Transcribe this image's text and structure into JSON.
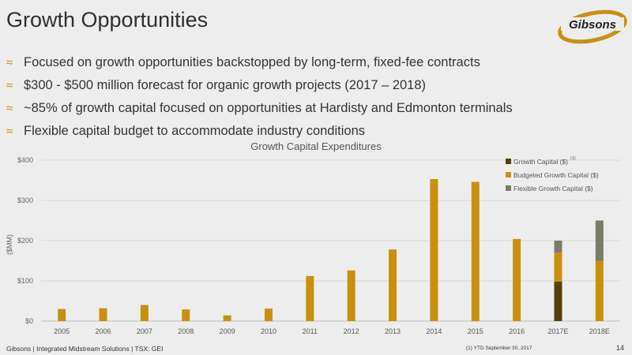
{
  "slide": {
    "title": "Growth Opportunities",
    "bullets": [
      "Focused on growth opportunities backstopped by long-term, fixed-fee contracts",
      "$300 - $500 million forecast for organic growth projects (2017 – 2018)",
      "~85% of growth capital focused on opportunities at Hardisty and Edmonton terminals",
      "Flexible capital budget to accommodate industry conditions"
    ],
    "bullet_icon": "≈",
    "logo_text": "Gibsons",
    "footer_left": "Gibsons  |  Integrated Midstream Solutions  |  TSX: GEI",
    "footer_note": "(1) YTD September 30, 2017",
    "page_number": "14"
  },
  "colors": {
    "growth": "#5a3d0a",
    "budgeted": "#c8900e",
    "flexible": "#7b7b6a",
    "accent": "#c08a1e"
  },
  "chart_data": {
    "type": "bar",
    "stacked": true,
    "title": "Growth Capital Expenditures",
    "xlabel": "",
    "ylabel": "($MM)",
    "ylim": [
      0,
      400
    ],
    "yticks": [
      0,
      100,
      200,
      300,
      400
    ],
    "ytick_labels": [
      "$0",
      "$100",
      "$200",
      "$300",
      "$400"
    ],
    "categories": [
      "2005",
      "2006",
      "2007",
      "2008",
      "2009",
      "2010",
      "2011",
      "2012",
      "2013",
      "2014",
      "2015",
      "2016",
      "2017E",
      "2018E"
    ],
    "series": [
      {
        "name": "Growth Capital ($)",
        "superscript": "(1)",
        "values": [
          0,
          0,
          0,
          0,
          0,
          0,
          0,
          0,
          0,
          0,
          0,
          0,
          98,
          0
        ]
      },
      {
        "name": "Budgeted Growth Capital ($)",
        "values": [
          30,
          32,
          40,
          29,
          14,
          31,
          112,
          126,
          178,
          353,
          346,
          204,
          72,
          150
        ]
      },
      {
        "name": "Flexible Growth Capital ($)",
        "values": [
          0,
          0,
          0,
          0,
          0,
          0,
          0,
          0,
          0,
          0,
          0,
          0,
          30,
          100
        ]
      }
    ],
    "grid": true,
    "legend_position": "top-right"
  }
}
